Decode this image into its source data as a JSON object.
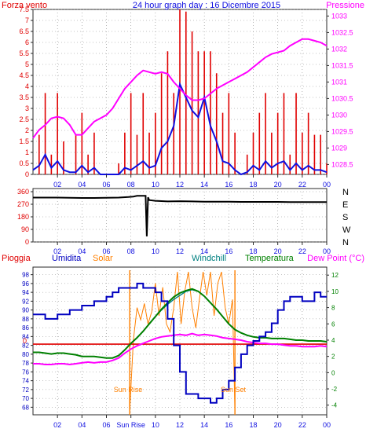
{
  "colors": {
    "frame": "#2a2a2a",
    "wind": "#e00000",
    "gust": "#1010e0",
    "pressure": "#ff00ff",
    "direction": "#000000",
    "rain": "#e00000",
    "humidity": "#0000c0",
    "solar": "#ff8000",
    "windchill": "#008080",
    "temperature": "#008000",
    "dewpoint": "#ff00ff",
    "grid": "#888888"
  },
  "top_panel": {
    "title": "24 hour graph day : 16 Dicembre 2015",
    "left_label": "Forza vento",
    "right_label": "Pressione"
  },
  "bottom_panel": {
    "legend": {
      "rain": "Pioggia",
      "humidity": "Umidita",
      "solar": "Solar",
      "windchill": "Windchill",
      "temperature": "Temperatura",
      "dewpoint": "Dew Point (°C)"
    },
    "sunrise_label": "Sun Rise",
    "sunset_label": "Sun Set",
    "rain_zero_label": "0"
  },
  "chart_data": [
    {
      "type": "line",
      "title": "24 hour graph day : 16 Dicembre 2015",
      "ylabel_left": "Forza vento",
      "ylabel_right": "Pressione",
      "y_left_ticks": [
        "0",
        "0.5",
        "1",
        "1.5",
        "2",
        "2.5",
        "3",
        "3.5",
        "4",
        "4.5",
        "5",
        "5.5",
        "6",
        "6.5",
        "7",
        "7.5"
      ],
      "ylim_left": [
        0,
        7.5
      ],
      "y_right_ticks": [
        "1028.5",
        "1029",
        "1029.5",
        "1030",
        "1030.5",
        "1031",
        "1031.5",
        "1032",
        "1032.5",
        "1033"
      ],
      "ylim_right": [
        1028.2,
        1033.2
      ],
      "x_ticks": [
        "02",
        "04",
        "06",
        "08",
        "10",
        "12",
        "14",
        "16",
        "18",
        "20",
        "22",
        "00"
      ],
      "x_hours": [
        0,
        0.5,
        1,
        1.5,
        2,
        2.5,
        3,
        3.5,
        4,
        4.5,
        5,
        5.5,
        6,
        6.5,
        7,
        7.5,
        8,
        8.5,
        9,
        9.5,
        10,
        10.5,
        11,
        11.5,
        12,
        12.5,
        13,
        13.5,
        14,
        14.5,
        15,
        15.5,
        16,
        16.5,
        17,
        17.5,
        18,
        18.5,
        19,
        19.5,
        20,
        20.5,
        21,
        21.5,
        22,
        22.5,
        23,
        23.5,
        24
      ],
      "series": [
        {
          "key": "wind",
          "values": [
            0,
            1.8,
            3.7,
            0.9,
            3.7,
            1.5,
            0,
            1.8,
            2.8,
            0.9,
            1.9,
            0,
            0,
            0,
            0.5,
            1.9,
            3.7,
            1.8,
            3.7,
            1.9,
            2.8,
            4.6,
            5.6,
            3.7,
            7.5,
            7.4,
            6.5,
            5.6,
            5.6,
            5.6,
            4.6,
            2.8,
            3.7,
            1.9,
            0,
            0.9,
            1.9,
            2.8,
            3.7,
            1.9,
            2.8,
            3.7,
            0.9,
            3.7,
            1.9,
            2.8,
            1.8,
            1.8,
            0.5
          ]
        },
        {
          "key": "gust",
          "values": [
            0.2,
            0.4,
            0.9,
            0.3,
            0.6,
            0.2,
            0.1,
            0.1,
            0.4,
            0.1,
            0.3,
            0,
            0,
            0,
            0,
            0.3,
            0.2,
            0.4,
            0.6,
            0.3,
            0.4,
            1.2,
            1.5,
            2.2,
            4.1,
            3.5,
            2.9,
            2.6,
            3.5,
            2.2,
            1.5,
            0.6,
            0.5,
            0.2,
            0,
            0.1,
            0.4,
            0.2,
            0.6,
            0.3,
            0.5,
            0.6,
            0.2,
            0.5,
            0.2,
            0.4,
            0.2,
            0.2,
            0.1
          ]
        },
        {
          "key": "pressure",
          "axis": "right",
          "values": [
            1029.3,
            1029.55,
            1029.7,
            1029.9,
            1029.95,
            1029.9,
            1029.7,
            1029.4,
            1029.4,
            1029.6,
            1029.8,
            1029.9,
            1030.0,
            1030.2,
            1030.5,
            1030.8,
            1031.0,
            1031.2,
            1031.35,
            1031.3,
            1031.25,
            1031.3,
            1031.25,
            1031.0,
            1030.8,
            1030.6,
            1030.45,
            1030.45,
            1030.5,
            1030.65,
            1030.8,
            1030.9,
            1031.0,
            1031.1,
            1031.2,
            1031.3,
            1031.45,
            1031.6,
            1031.75,
            1031.85,
            1031.9,
            1031.95,
            1032.1,
            1032.2,
            1032.3,
            1032.3,
            1032.25,
            1032.2,
            1032.1
          ]
        }
      ]
    },
    {
      "type": "line",
      "title": "",
      "y_left_ticks": [
        "0",
        "90",
        "180",
        "270",
        "360"
      ],
      "ylim_left": [
        0,
        360
      ],
      "y_right_ticks": [
        "N",
        "W",
        "S",
        "E",
        "N"
      ],
      "x_ticks": [
        "02",
        "04",
        "06",
        "08",
        "10",
        "12",
        "14",
        "16",
        "18",
        "20",
        "22",
        "00"
      ],
      "x_hours": [
        0,
        1,
        2,
        3,
        4,
        5,
        6,
        7,
        7.8,
        8.2,
        8.5,
        9.2,
        9.3,
        9.4,
        9.5,
        10,
        11,
        12,
        13,
        14,
        15,
        16,
        17,
        18,
        19,
        20,
        21,
        22,
        23,
        24
      ],
      "series": [
        {
          "key": "direction",
          "values": [
            318,
            318,
            318,
            316,
            315,
            315,
            316,
            318,
            322,
            325,
            330,
            330,
            40,
            320,
            300,
            295,
            290,
            292,
            290,
            288,
            288,
            288,
            287,
            287,
            287,
            287,
            286,
            286,
            286,
            286
          ]
        }
      ]
    },
    {
      "type": "line",
      "title": "",
      "y_left_ticks": [
        "68",
        "70",
        "72",
        "74",
        "76",
        "78",
        "80",
        "82",
        "84",
        "86",
        "88",
        "90",
        "92",
        "94",
        "96",
        "98"
      ],
      "ylim_left": [
        67,
        99
      ],
      "y_right_ticks": [
        "-4",
        "-2",
        "0",
        "2",
        "4",
        "6",
        "8",
        "10",
        "12"
      ],
      "ylim_right": [
        -4.8,
        12.6
      ],
      "x_ticks": [
        "02",
        "04",
        "06",
        "Sun Rise",
        "10",
        "12",
        "14",
        "16",
        "18",
        "20",
        "22",
        "00"
      ],
      "x_hours": [
        0,
        0.5,
        1,
        1.5,
        2,
        2.5,
        3,
        3.5,
        4,
        4.5,
        5,
        5.5,
        6,
        6.5,
        7,
        7.5,
        8,
        8.5,
        9,
        9.5,
        10,
        10.5,
        11,
        11.5,
        12,
        12.5,
        13,
        13.5,
        14,
        14.5,
        15,
        15.5,
        16,
        16.5,
        17,
        17.5,
        18,
        18.5,
        19,
        19.5,
        20,
        20.5,
        21,
        21.5,
        22,
        22.5,
        23,
        23.5,
        24
      ],
      "series": [
        {
          "key": "humidity",
          "axis": "left",
          "values": [
            89,
            89,
            88,
            88,
            89,
            89,
            90,
            90,
            91,
            91,
            92,
            92,
            93,
            94,
            95,
            95,
            95,
            96,
            95,
            95,
            94,
            92,
            88,
            82,
            76,
            71,
            71,
            70,
            70,
            69,
            70,
            72,
            74,
            77,
            80,
            82,
            83,
            84,
            85,
            87,
            90,
            92,
            93,
            93,
            92,
            92,
            94,
            93,
            93
          ]
        },
        {
          "key": "temperature",
          "axis": "right",
          "values": [
            2.5,
            2.5,
            2.4,
            2.3,
            2.4,
            2.4,
            2.3,
            2.2,
            2.0,
            2.0,
            2.0,
            1.9,
            1.8,
            1.8,
            2.1,
            2.8,
            3.6,
            4.3,
            5.1,
            6.0,
            6.9,
            7.8,
            8.6,
            9.3,
            9.8,
            10.1,
            10.3,
            10.0,
            9.4,
            8.6,
            7.8,
            6.9,
            6.0,
            5.3,
            4.9,
            4.6,
            4.4,
            4.3,
            4.3,
            4.2,
            4.2,
            4.2,
            4.1,
            4.0,
            4.0,
            3.9,
            3.9,
            3.9,
            3.8
          ]
        },
        {
          "key": "windchill",
          "axis": "right",
          "values": [
            2.5,
            2.5,
            2.4,
            2.3,
            2.4,
            2.4,
            2.3,
            2.2,
            2.0,
            2.0,
            2.0,
            1.9,
            1.8,
            1.8,
            2.1,
            2.8,
            3.6,
            4.3,
            5.1,
            6.0,
            6.9,
            7.7,
            8.4,
            9.0,
            9.5,
            10.0,
            10.2,
            10.0,
            9.4,
            8.6,
            7.8,
            6.9,
            6.0,
            5.3,
            4.9,
            4.6,
            4.4,
            4.3,
            4.3,
            4.2,
            4.2,
            4.2,
            4.1,
            4.0,
            4.0,
            3.9,
            3.9,
            3.9,
            3.8
          ]
        },
        {
          "key": "dewpoint",
          "axis": "right",
          "values": [
            1.1,
            1.1,
            1.0,
            1.0,
            1.1,
            1.1,
            1.0,
            1.1,
            1.2,
            1.3,
            1.2,
            1.3,
            1.3,
            1.5,
            1.8,
            2.4,
            2.9,
            3.3,
            3.6,
            3.9,
            4.2,
            4.4,
            4.5,
            4.6,
            4.7,
            4.6,
            4.8,
            4.6,
            4.7,
            4.6,
            4.5,
            4.3,
            4.2,
            4.1,
            4.0,
            3.8,
            3.7,
            3.6,
            3.6,
            3.5,
            3.5,
            3.4,
            3.3,
            3.3,
            3.2,
            3.2,
            3.2,
            3.3,
            3.2
          ]
        },
        {
          "key": "rain",
          "axis": "right",
          "values": [
            3.5,
            3.5,
            3.5,
            3.5,
            3.5,
            3.5,
            3.5,
            3.5,
            3.5,
            3.5,
            3.5,
            3.5,
            3.5,
            3.5,
            3.5,
            3.5,
            3.5,
            3.5,
            3.5,
            3.5,
            3.5,
            3.5,
            3.5,
            3.5,
            3.5,
            3.5,
            3.5,
            3.5,
            3.5,
            3.5,
            3.5,
            3.5,
            3.5,
            3.5,
            3.5,
            3.5,
            3.5,
            3.5,
            3.5,
            3.5,
            3.5,
            3.5,
            3.5,
            3.5,
            3.5,
            3.5,
            3.5,
            3.5,
            3.5
          ]
        },
        {
          "key": "solar",
          "axis": "right",
          "x_hours": [
            7.9,
            8.2,
            8.5,
            8.8,
            9.1,
            9.4,
            9.7,
            10.0,
            10.3,
            10.6,
            10.9,
            11.2,
            11.5,
            11.8,
            12.1,
            12.4,
            12.7,
            13.0,
            13.3,
            13.6,
            13.9,
            14.2,
            14.5,
            14.8,
            15.1,
            15.4,
            15.7,
            16.0,
            16.3,
            16.5
          ],
          "values": [
            -4.8,
            4.0,
            8.0,
            6.5,
            8.5,
            6.0,
            7.5,
            11.0,
            7.0,
            10.5,
            6.0,
            5.0,
            8.0,
            12.4,
            6.0,
            10.0,
            12.4,
            8.0,
            5.5,
            9.0,
            12.4,
            9.5,
            12.4,
            7.0,
            11.0,
            12.4,
            8.0,
            6.0,
            9.0,
            -4.8
          ]
        }
      ],
      "markers": {
        "sunrise_hour": 7.9,
        "sunset_hour": 16.5
      }
    }
  ]
}
